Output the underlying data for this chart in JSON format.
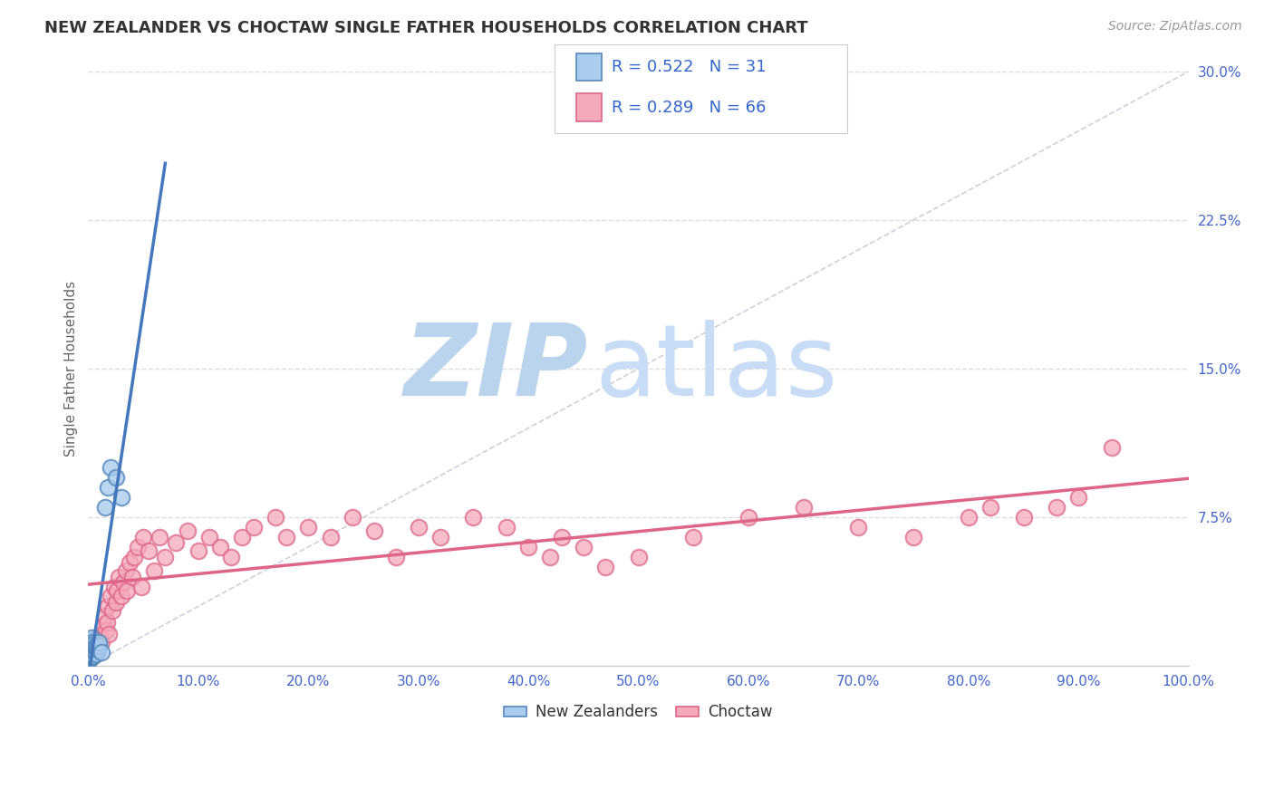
{
  "title": "NEW ZEALANDER VS CHOCTAW SINGLE FATHER HOUSEHOLDS CORRELATION CHART",
  "source_text": "Source: ZipAtlas.com",
  "ylabel": "Single Father Households",
  "xlim": [
    0.0,
    1.0
  ],
  "ylim": [
    0.0,
    0.3
  ],
  "yticks": [
    0.0,
    0.075,
    0.15,
    0.225,
    0.3
  ],
  "yticklabels": [
    "",
    "7.5%",
    "15.0%",
    "22.5%",
    "30.0%"
  ],
  "xtick_positions": [
    0.0,
    0.1,
    0.2,
    0.3,
    0.4,
    0.5,
    0.6,
    0.7,
    0.8,
    0.9,
    1.0
  ],
  "xticklabels": [
    "0.0%",
    "10.0%",
    "20.0%",
    "30.0%",
    "40.0%",
    "50.0%",
    "60.0%",
    "70.0%",
    "80.0%",
    "90.0%",
    "100.0%"
  ],
  "legend_r_nz": "R = 0.522",
  "legend_n_nz": "N = 31",
  "legend_r_ch": "R = 0.289",
  "legend_n_ch": "N = 66",
  "legend_label_nz": "New Zealanders",
  "legend_label_ch": "Choctaw",
  "color_nz_fill": "#aaccee",
  "color_nz_edge": "#5588bb",
  "color_ch_fill": "#f5aabb",
  "color_ch_edge": "#dd6688",
  "color_nz_line": "#4477bb",
  "color_ch_line": "#dd6688",
  "color_diag": "#bbbbcc",
  "color_title": "#333333",
  "color_source": "#999999",
  "color_tick": "#4466cc",
  "color_legend_text": "#3366cc",
  "watermark_zip_color": "#bbd4ee",
  "watermark_atlas_color": "#c8ddf5",
  "background_color": "#ffffff",
  "grid_color": "#dddddd",
  "nz_x": [
    0.001,
    0.001,
    0.001,
    0.002,
    0.002,
    0.002,
    0.002,
    0.003,
    0.003,
    0.003,
    0.003,
    0.004,
    0.004,
    0.004,
    0.005,
    0.005,
    0.005,
    0.006,
    0.006,
    0.007,
    0.007,
    0.008,
    0.009,
    0.01,
    0.01,
    0.012,
    0.015,
    0.018,
    0.02,
    0.025,
    0.03
  ],
  "nz_y": [
    0.003,
    0.006,
    0.01,
    0.004,
    0.007,
    0.01,
    0.013,
    0.005,
    0.008,
    0.011,
    0.014,
    0.006,
    0.009,
    0.012,
    0.005,
    0.008,
    0.011,
    0.007,
    0.01,
    0.006,
    0.009,
    0.009,
    0.008,
    0.01,
    0.012,
    0.007,
    0.08,
    0.09,
    0.1,
    0.095,
    0.085
  ],
  "ch_x": [
    0.005,
    0.008,
    0.01,
    0.012,
    0.014,
    0.015,
    0.016,
    0.017,
    0.018,
    0.019,
    0.02,
    0.022,
    0.024,
    0.025,
    0.026,
    0.028,
    0.03,
    0.032,
    0.034,
    0.035,
    0.038,
    0.04,
    0.042,
    0.045,
    0.048,
    0.05,
    0.055,
    0.06,
    0.065,
    0.07,
    0.08,
    0.09,
    0.1,
    0.11,
    0.12,
    0.13,
    0.14,
    0.15,
    0.17,
    0.18,
    0.2,
    0.22,
    0.24,
    0.26,
    0.28,
    0.3,
    0.32,
    0.35,
    0.38,
    0.4,
    0.42,
    0.43,
    0.45,
    0.47,
    0.5,
    0.55,
    0.6,
    0.65,
    0.7,
    0.75,
    0.8,
    0.82,
    0.85,
    0.88,
    0.9,
    0.93
  ],
  "ch_y": [
    0.005,
    0.01,
    0.015,
    0.012,
    0.02,
    0.025,
    0.018,
    0.022,
    0.03,
    0.016,
    0.035,
    0.028,
    0.04,
    0.032,
    0.038,
    0.045,
    0.035,
    0.042,
    0.048,
    0.038,
    0.052,
    0.045,
    0.055,
    0.06,
    0.04,
    0.065,
    0.058,
    0.048,
    0.065,
    0.055,
    0.062,
    0.068,
    0.058,
    0.065,
    0.06,
    0.055,
    0.065,
    0.07,
    0.075,
    0.065,
    0.07,
    0.065,
    0.075,
    0.068,
    0.055,
    0.07,
    0.065,
    0.075,
    0.07,
    0.06,
    0.055,
    0.065,
    0.06,
    0.05,
    0.055,
    0.065,
    0.075,
    0.08,
    0.07,
    0.065,
    0.075,
    0.08,
    0.075,
    0.08,
    0.085,
    0.11
  ],
  "nz_line_x0": 0.0,
  "nz_line_x1": 1.0,
  "ch_line_x0": 0.0,
  "ch_line_x1": 1.0
}
